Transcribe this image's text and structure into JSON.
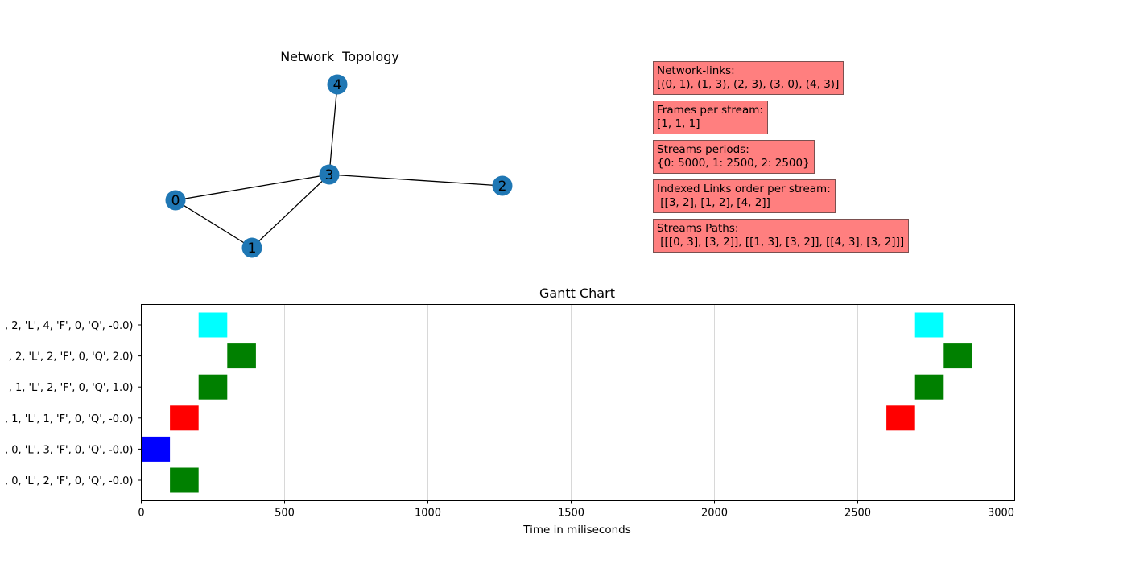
{
  "chart_data": [
    {
      "type": "network",
      "title": "Network  Topology",
      "nodes": [
        {
          "id": "0"
        },
        {
          "id": "1"
        },
        {
          "id": "2"
        },
        {
          "id": "3"
        },
        {
          "id": "4"
        }
      ],
      "edges": [
        [
          "0",
          "1"
        ],
        [
          "1",
          "3"
        ],
        [
          "2",
          "3"
        ],
        [
          "3",
          "0"
        ],
        [
          "4",
          "3"
        ]
      ],
      "node_color": "#1f77b4"
    },
    {
      "type": "gantt",
      "title": "Gantt Chart",
      "xlabel": "Time in miliseconds",
      "xlim": [
        0,
        3050
      ],
      "xticks": [
        0,
        500,
        1000,
        1500,
        2000,
        2500,
        3000
      ],
      "grid": true,
      "rows": [
        {
          "label": ", 0, 'L', 2, 'F', 0, 'Q', -0.0)"
        },
        {
          "label": ", 0, 'L', 3, 'F', 0, 'Q', -0.0)"
        },
        {
          "label": ", 1, 'L', 1, 'F', 0, 'Q', -0.0)"
        },
        {
          "label": ", 1, 'L', 2, 'F', 0, 'Q', 1.0)"
        },
        {
          "label": ", 2, 'L', 2, 'F', 0, 'Q', 2.0)"
        },
        {
          "label": ", 2, 'L', 4, 'F', 0, 'Q', -0.0)"
        }
      ],
      "bars": [
        {
          "row": 0,
          "start": 100,
          "end": 200,
          "color": "#008000"
        },
        {
          "row": 1,
          "start": 0,
          "end": 100,
          "color": "#0000ff"
        },
        {
          "row": 2,
          "start": 100,
          "end": 200,
          "color": "#ff0000"
        },
        {
          "row": 2,
          "start": 2600,
          "end": 2700,
          "color": "#ff0000"
        },
        {
          "row": 3,
          "start": 200,
          "end": 300,
          "color": "#008000"
        },
        {
          "row": 3,
          "start": 2700,
          "end": 2800,
          "color": "#008000"
        },
        {
          "row": 4,
          "start": 300,
          "end": 400,
          "color": "#008000"
        },
        {
          "row": 4,
          "start": 2800,
          "end": 2900,
          "color": "#008000"
        },
        {
          "row": 5,
          "start": 200,
          "end": 300,
          "color": "#00ffff"
        },
        {
          "row": 5,
          "start": 2700,
          "end": 2800,
          "color": "#00ffff"
        }
      ]
    }
  ],
  "info_boxes": [
    {
      "text": "Network-links:\n[(0, 1), (1, 3), (2, 3), (3, 0), (4, 3)]"
    },
    {
      "text": "Frames per stream:\n[1, 1, 1]"
    },
    {
      "text": "Streams periods:\n{0: 5000, 1: 2500, 2: 2500}"
    },
    {
      "text": "Indexed Links order per stream:\n [[3, 2], [1, 2], [4, 2]]"
    },
    {
      "text": "Streams Paths:\n [[[0, 3], [3, 2]], [[1, 3], [3, 2]], [[4, 3], [3, 2]]]"
    }
  ]
}
